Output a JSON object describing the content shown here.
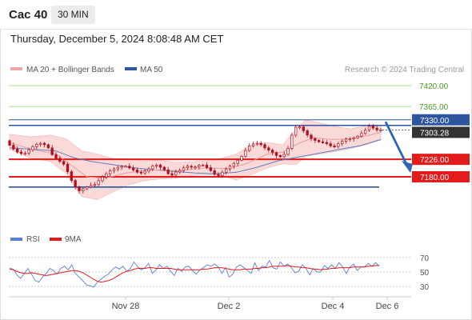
{
  "header": {
    "instrument": "Cac 40",
    "timeframe": "30 MIN",
    "datetime": "Thursday, December 5, 2024 8:08:48 AM CET"
  },
  "legend": {
    "ma_bb": "MA 20 + Bollinger Bands",
    "ma50": "MA 50",
    "rsi": "RSI",
    "nine_ma": "9MA"
  },
  "attribution": "Research © 2024 Trading Central",
  "colors": {
    "bollinger_fill": "#f8cccc",
    "ma20": "#e89c9c",
    "ma50": "#3a62a8",
    "candle": "#b30f1e",
    "resistance": "#a8dd8c",
    "resistance_label": "#4a9a22",
    "support": "#e41b1b",
    "channel": "#2d55a0",
    "price": "#333333",
    "arrow": "#2c66b8",
    "rsi": "#5b7fd6",
    "rsi_ma": "#e41b1b"
  },
  "chart_data": [
    {
      "type": "candlestick",
      "title": "Cac 40",
      "timeframe": "30 MIN",
      "xlabels": [
        "Nov 28",
        "Dec 2",
        "Dec 4",
        "Dec 6"
      ],
      "ylim": [
        7115,
        7450
      ],
      "current_price": 7303.28,
      "levels": [
        {
          "value": 7420.0,
          "label": "7420.00",
          "kind": "resistance"
        },
        {
          "value": 7365.0,
          "label": "7365.00",
          "kind": "resistance"
        },
        {
          "value": 7330.0,
          "label": "7330.00",
          "kind": "channel"
        },
        {
          "value": 7226.0,
          "label": "7226.00",
          "kind": "support"
        },
        {
          "value": 7180.0,
          "label": "7180.00",
          "kind": "support"
        }
      ],
      "channel_lower": 7153,
      "forecast": {
        "from": 7310,
        "to": 7180,
        "direction": "down"
      },
      "price_path": [
        [
          0,
          7275
        ],
        [
          4,
          7248
        ],
        [
          7,
          7240
        ],
        [
          10,
          7258
        ],
        [
          13,
          7270
        ],
        [
          16,
          7262
        ],
        [
          18,
          7238
        ],
        [
          20,
          7225
        ],
        [
          23,
          7210
        ],
        [
          25,
          7175
        ],
        [
          28,
          7140
        ],
        [
          31,
          7150
        ],
        [
          34,
          7158
        ],
        [
          37,
          7178
        ],
        [
          40,
          7195
        ],
        [
          43,
          7205
        ],
        [
          46,
          7210
        ],
        [
          49,
          7200
        ],
        [
          52,
          7188
        ],
        [
          55,
          7198
        ],
        [
          58,
          7212
        ],
        [
          61,
          7200
        ],
        [
          64,
          7180
        ],
        [
          67,
          7196
        ],
        [
          70,
          7210
        ],
        [
          73,
          7206
        ],
        [
          76,
          7214
        ],
        [
          79,
          7200
        ],
        [
          82,
          7180
        ],
        [
          85,
          7198
        ],
        [
          88,
          7212
        ],
        [
          91,
          7228
        ],
        [
          94,
          7258
        ],
        [
          97,
          7268
        ],
        [
          100,
          7260
        ],
        [
          103,
          7248
        ],
        [
          106,
          7232
        ],
        [
          109,
          7244
        ],
        [
          111,
          7290
        ],
        [
          113,
          7318
        ],
        [
          115,
          7305
        ],
        [
          118,
          7282
        ],
        [
          121,
          7272
        ],
        [
          124,
          7268
        ],
        [
          127,
          7256
        ],
        [
          130,
          7270
        ],
        [
          133,
          7281
        ],
        [
          136,
          7286
        ],
        [
          139,
          7300
        ],
        [
          141,
          7314
        ],
        [
          144,
          7304
        ]
      ],
      "ma20": [
        [
          0,
          7270
        ],
        [
          10,
          7250
        ],
        [
          18,
          7240
        ],
        [
          25,
          7205
        ],
        [
          30,
          7180
        ],
        [
          37,
          7176
        ],
        [
          45,
          7190
        ],
        [
          55,
          7198
        ],
        [
          65,
          7196
        ],
        [
          75,
          7203
        ],
        [
          85,
          7202
        ],
        [
          92,
          7215
        ],
        [
          100,
          7240
        ],
        [
          106,
          7245
        ],
        [
          112,
          7268
        ],
        [
          118,
          7283
        ],
        [
          125,
          7278
        ],
        [
          132,
          7280
        ],
        [
          140,
          7290
        ],
        [
          144,
          7297
        ]
      ],
      "bollinger_upper": [
        [
          0,
          7292
        ],
        [
          8,
          7285
        ],
        [
          16,
          7290
        ],
        [
          22,
          7280
        ],
        [
          28,
          7248
        ],
        [
          34,
          7240
        ],
        [
          40,
          7228
        ],
        [
          46,
          7228
        ],
        [
          52,
          7222
        ],
        [
          58,
          7224
        ],
        [
          64,
          7218
        ],
        [
          72,
          7220
        ],
        [
          80,
          7224
        ],
        [
          88,
          7240
        ],
        [
          94,
          7265
        ],
        [
          100,
          7270
        ],
        [
          106,
          7264
        ],
        [
          111,
          7305
        ],
        [
          115,
          7330
        ],
        [
          120,
          7322
        ],
        [
          126,
          7313
        ],
        [
          132,
          7306
        ],
        [
          138,
          7314
        ],
        [
          144,
          7316
        ]
      ],
      "bollinger_lower": [
        [
          0,
          7252
        ],
        [
          8,
          7230
        ],
        [
          16,
          7220
        ],
        [
          22,
          7188
        ],
        [
          28,
          7128
        ],
        [
          34,
          7120
        ],
        [
          40,
          7140
        ],
        [
          46,
          7158
        ],
        [
          52,
          7170
        ],
        [
          58,
          7174
        ],
        [
          64,
          7176
        ],
        [
          72,
          7184
        ],
        [
          80,
          7186
        ],
        [
          88,
          7172
        ],
        [
          94,
          7186
        ],
        [
          100,
          7204
        ],
        [
          106,
          7214
        ],
        [
          111,
          7212
        ],
        [
          115,
          7234
        ],
        [
          120,
          7240
        ],
        [
          126,
          7246
        ],
        [
          132,
          7254
        ],
        [
          138,
          7264
        ],
        [
          144,
          7277
        ]
      ],
      "ma50": [
        [
          0,
          7256
        ],
        [
          10,
          7252
        ],
        [
          18,
          7248
        ],
        [
          25,
          7230
        ],
        [
          32,
          7220
        ],
        [
          40,
          7212
        ],
        [
          48,
          7204
        ],
        [
          56,
          7198
        ],
        [
          64,
          7194
        ],
        [
          72,
          7190
        ],
        [
          80,
          7188
        ],
        [
          88,
          7192
        ],
        [
          96,
          7205
        ],
        [
          104,
          7222
        ],
        [
          112,
          7232
        ],
        [
          120,
          7242
        ],
        [
          128,
          7252
        ],
        [
          136,
          7262
        ],
        [
          144,
          7278
        ]
      ]
    },
    {
      "type": "line",
      "title": "RSI",
      "yticks": [
        70,
        50,
        30
      ],
      "ylim": [
        20,
        80
      ],
      "series": [
        {
          "name": "RSI",
          "values": [
            55,
            54,
            46,
            41,
            48,
            55,
            47,
            38,
            36,
            43,
            48,
            55,
            52,
            47,
            55,
            58,
            53,
            60,
            48,
            43,
            38,
            32,
            31,
            29,
            36,
            40,
            44,
            47,
            53,
            57,
            54,
            58,
            51,
            55,
            64,
            57,
            53,
            56,
            62,
            48,
            53,
            60,
            55,
            58,
            51,
            45,
            55,
            51,
            57,
            58,
            52,
            47,
            53,
            56,
            60,
            58,
            61,
            57,
            48,
            56,
            43,
            47,
            57,
            60,
            56,
            52,
            48,
            63,
            52,
            58,
            57,
            66,
            56,
            54,
            64,
            58,
            61,
            56,
            49,
            51,
            60,
            55,
            46,
            55,
            50,
            50,
            59,
            55,
            60,
            55,
            63,
            57,
            48,
            57,
            61,
            52,
            57,
            57,
            62,
            58,
            63,
            58
          ]
        },
        {
          "name": "9MA",
          "values": [
            54,
            53,
            51,
            49,
            48,
            48,
            49,
            48,
            47,
            46,
            45,
            46,
            47,
            48,
            49,
            50,
            51,
            52,
            52,
            51,
            49,
            46,
            43,
            40,
            37,
            36,
            37,
            38,
            40,
            43,
            46,
            49,
            51,
            52,
            54,
            55,
            55,
            55,
            56,
            56,
            55,
            55,
            55,
            55,
            55,
            54,
            53,
            53,
            53,
            53,
            53,
            53,
            53,
            54,
            54,
            55,
            56,
            56,
            56,
            55,
            54,
            53,
            53,
            53,
            54,
            54,
            54,
            55,
            55,
            56,
            56,
            57,
            58,
            58,
            58,
            58,
            59,
            58,
            57,
            57,
            56,
            56,
            55,
            54,
            54,
            53,
            54,
            54,
            55,
            55,
            56,
            56,
            56,
            56,
            57,
            57,
            57,
            57,
            58,
            58,
            59,
            59
          ]
        }
      ]
    }
  ]
}
